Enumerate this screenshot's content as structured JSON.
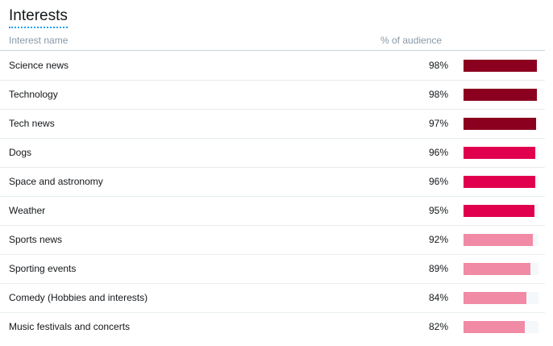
{
  "panel": {
    "title": "Interests",
    "columns": {
      "name": "Interest name",
      "percent": "% of audience"
    }
  },
  "colors": {
    "high": "#8b001e",
    "mid": "#e0004d",
    "low": "#f18aa4",
    "track": "#f5f8fa",
    "title_underline": "#1da1f2"
  },
  "interests": [
    {
      "name": "Science news",
      "percent_label": "98%",
      "percent": 98,
      "tier": "high"
    },
    {
      "name": "Technology",
      "percent_label": "98%",
      "percent": 98,
      "tier": "high"
    },
    {
      "name": "Tech news",
      "percent_label": "97%",
      "percent": 97,
      "tier": "high"
    },
    {
      "name": "Dogs",
      "percent_label": "96%",
      "percent": 96,
      "tier": "mid"
    },
    {
      "name": "Space and astronomy",
      "percent_label": "96%",
      "percent": 96,
      "tier": "mid"
    },
    {
      "name": "Weather",
      "percent_label": "95%",
      "percent": 95,
      "tier": "mid"
    },
    {
      "name": "Sports news",
      "percent_label": "92%",
      "percent": 92,
      "tier": "low"
    },
    {
      "name": "Sporting events",
      "percent_label": "89%",
      "percent": 89,
      "tier": "low"
    },
    {
      "name": "Comedy (Hobbies and interests)",
      "percent_label": "84%",
      "percent": 84,
      "tier": "low"
    },
    {
      "name": "Music festivals and concerts",
      "percent_label": "82%",
      "percent": 82,
      "tier": "low"
    }
  ]
}
